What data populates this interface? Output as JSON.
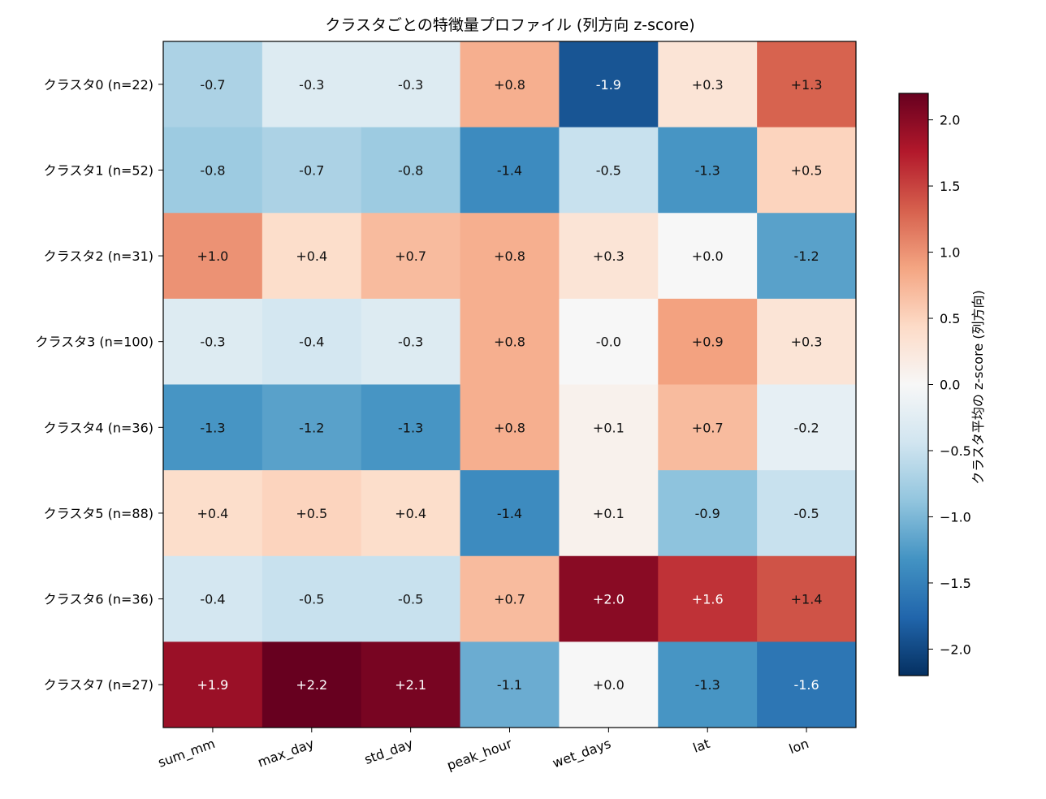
{
  "chart_data": {
    "type": "heatmap",
    "title": "クラスタごとの特徴量プロファイル (列方向 z-score)",
    "rows": [
      "クラスタ0 (n=22)",
      "クラスタ1 (n=52)",
      "クラスタ2 (n=31)",
      "クラスタ3 (n=100)",
      "クラスタ4 (n=36)",
      "クラスタ5 (n=88)",
      "クラスタ6 (n=36)",
      "クラスタ7 (n=27)"
    ],
    "columns": [
      "sum_mm",
      "max_day",
      "std_day",
      "peak_hour",
      "wet_days",
      "lat",
      "lon"
    ],
    "values": [
      [
        -0.7,
        -0.3,
        -0.3,
        0.8,
        -1.9,
        0.3,
        1.3
      ],
      [
        -0.8,
        -0.7,
        -0.8,
        -1.4,
        -0.5,
        -1.3,
        0.5
      ],
      [
        1.0,
        0.4,
        0.7,
        0.8,
        0.3,
        0.0,
        -1.2
      ],
      [
        -0.3,
        -0.4,
        -0.3,
        0.8,
        -0.0,
        0.9,
        0.3
      ],
      [
        -1.3,
        -1.2,
        -1.3,
        0.8,
        0.1,
        0.7,
        -0.2
      ],
      [
        0.4,
        0.5,
        0.4,
        -1.4,
        0.1,
        -0.9,
        -0.5
      ],
      [
        -0.4,
        -0.5,
        -0.5,
        0.7,
        2.0,
        1.6,
        1.4
      ],
      [
        1.9,
        2.2,
        2.1,
        -1.1,
        0.0,
        -1.3,
        -1.6
      ]
    ],
    "cell_labels": [
      [
        "-0.7",
        "-0.3",
        "-0.3",
        "+0.8",
        "-1.9",
        "+0.3",
        "+1.3"
      ],
      [
        "-0.8",
        "-0.7",
        "-0.8",
        "-1.4",
        "-0.5",
        "-1.3",
        "+0.5"
      ],
      [
        "+1.0",
        "+0.4",
        "+0.7",
        "+0.8",
        "+0.3",
        "+0.0",
        "-1.2"
      ],
      [
        "-0.3",
        "-0.4",
        "-0.3",
        "+0.8",
        "-0.0",
        "+0.9",
        "+0.3"
      ],
      [
        "-1.3",
        "-1.2",
        "-1.3",
        "+0.8",
        "+0.1",
        "+0.7",
        "-0.2"
      ],
      [
        "+0.4",
        "+0.5",
        "+0.4",
        "-1.4",
        "+0.1",
        "-0.9",
        "-0.5"
      ],
      [
        "-0.4",
        "-0.5",
        "-0.5",
        "+0.7",
        "+2.0",
        "+1.6",
        "+1.4"
      ],
      [
        "+1.9",
        "+2.2",
        "+2.1",
        "-1.1",
        "+0.0",
        "-1.3",
        "-1.6"
      ]
    ],
    "colormap": "RdBu_r",
    "vmin": -2.2,
    "vmax": 2.2,
    "colorbar": {
      "label": "クラスタ平均の z-score (列方向)",
      "ticks": [
        2.0,
        1.5,
        1.0,
        0.5,
        0.0,
        -0.5,
        -1.0,
        -1.5,
        -2.0
      ],
      "tick_labels": [
        "2.0",
        "1.5",
        "1.0",
        "0.5",
        "0.0",
        "−0.5",
        "−1.0",
        "−1.5",
        "−2.0"
      ],
      "placement": "right"
    }
  }
}
